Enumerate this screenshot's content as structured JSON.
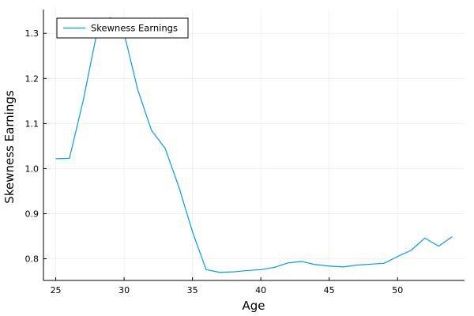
{
  "chart_data": {
    "type": "line",
    "title": "",
    "xlabel": "Age",
    "ylabel": "Skewness Earnings",
    "xlim": [
      24.1,
      54.9
    ],
    "ylim": [
      0.752,
      1.353
    ],
    "xticks": [
      25,
      30,
      35,
      40,
      45,
      50
    ],
    "yticks": [
      0.8,
      0.9,
      1.0,
      1.1,
      1.2,
      1.3
    ],
    "xtick_labels": [
      "25",
      "30",
      "35",
      "40",
      "45",
      "50"
    ],
    "ytick_labels": [
      "0.8",
      "0.9",
      "1.0",
      "1.1",
      "1.2",
      "1.3"
    ],
    "grid": true,
    "legend_position": "top-left",
    "series": [
      {
        "name": "Skewness Earnings",
        "color": "#009AFA",
        "x": [
          25,
          26,
          27,
          28,
          29,
          30,
          31,
          32,
          33,
          34,
          35,
          36,
          37,
          38,
          39,
          40,
          41,
          42,
          43,
          44,
          45,
          46,
          47,
          48,
          49,
          50,
          51,
          52,
          53,
          54
        ],
        "y": [
          1.022,
          1.023,
          1.15,
          1.3,
          1.335,
          1.3,
          1.175,
          1.085,
          1.045,
          0.96,
          0.86,
          0.776,
          0.77,
          0.771,
          0.774,
          0.776,
          0.781,
          0.791,
          0.794,
          0.787,
          0.784,
          0.782,
          0.786,
          0.788,
          0.79,
          0.805,
          0.819,
          0.846,
          0.828,
          0.849
        ]
      }
    ]
  }
}
